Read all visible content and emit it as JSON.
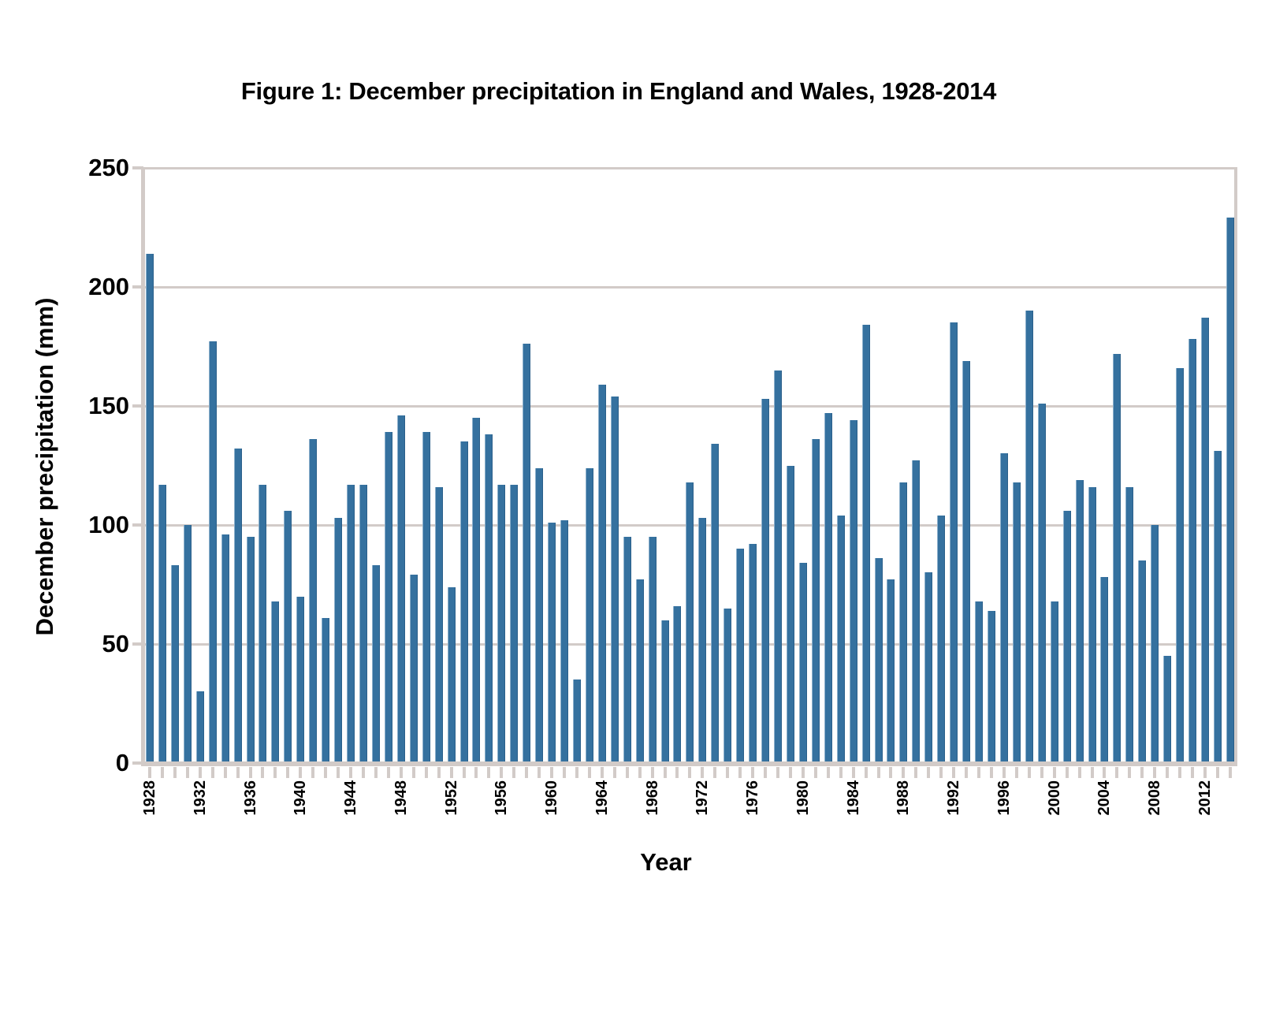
{
  "title": "Figure 1: December precipitation in England and Wales, 1928-2014",
  "colors": {
    "bar": "#35719F",
    "bar_edge_light": "#8FB2CD",
    "bar_edge_dark": "#2A5F8A",
    "grid": "#D2CBC8",
    "text": "#000000",
    "background": "#FFFFFF"
  },
  "chart_data": {
    "type": "bar",
    "title": "Figure 1: December precipitation in England and Wales, 1928-2014",
    "xlabel": "Year",
    "ylabel": "December precipitation (mm)",
    "ylim": [
      0,
      250
    ],
    "yticks": [
      0,
      50,
      100,
      150,
      200,
      250
    ],
    "grid": "horizontal",
    "legend": false,
    "xtick_labeled_years": [
      1928,
      1932,
      1936,
      1940,
      1944,
      1948,
      1952,
      1956,
      1960,
      1964,
      1968,
      1972,
      1976,
      1980,
      1984,
      1988,
      1992,
      1996,
      2000,
      2004,
      2008,
      2012
    ],
    "categories": [
      1928,
      1929,
      1930,
      1931,
      1932,
      1933,
      1934,
      1935,
      1936,
      1937,
      1938,
      1939,
      1940,
      1941,
      1942,
      1943,
      1944,
      1945,
      1946,
      1947,
      1948,
      1949,
      1950,
      1951,
      1952,
      1953,
      1954,
      1955,
      1956,
      1957,
      1958,
      1959,
      1960,
      1961,
      1962,
      1963,
      1964,
      1965,
      1966,
      1967,
      1968,
      1969,
      1970,
      1971,
      1972,
      1973,
      1974,
      1975,
      1976,
      1977,
      1978,
      1979,
      1980,
      1981,
      1982,
      1983,
      1984,
      1985,
      1986,
      1987,
      1988,
      1989,
      1990,
      1991,
      1992,
      1993,
      1994,
      1995,
      1996,
      1997,
      1998,
      1999,
      2000,
      2001,
      2002,
      2003,
      2004,
      2005,
      2006,
      2007,
      2008,
      2009,
      2010,
      2011,
      2012,
      2013,
      2014
    ],
    "values": [
      214,
      117,
      83,
      100,
      30,
      177,
      96,
      132,
      95,
      117,
      68,
      106,
      70,
      136,
      61,
      103,
      117,
      117,
      83,
      139,
      146,
      79,
      139,
      116,
      74,
      135,
      145,
      138,
      117,
      117,
      176,
      124,
      101,
      102,
      35,
      124,
      159,
      154,
      95,
      77,
      95,
      60,
      66,
      118,
      103,
      134,
      65,
      90,
      92,
      153,
      165,
      125,
      84,
      136,
      147,
      104,
      144,
      184,
      86,
      77,
      118,
      127,
      80,
      104,
      185,
      169,
      68,
      64,
      130,
      118,
      190,
      151,
      68,
      106,
      119,
      116,
      78,
      172,
      116,
      85,
      100,
      45,
      166,
      178,
      187,
      131,
      229
    ]
  }
}
